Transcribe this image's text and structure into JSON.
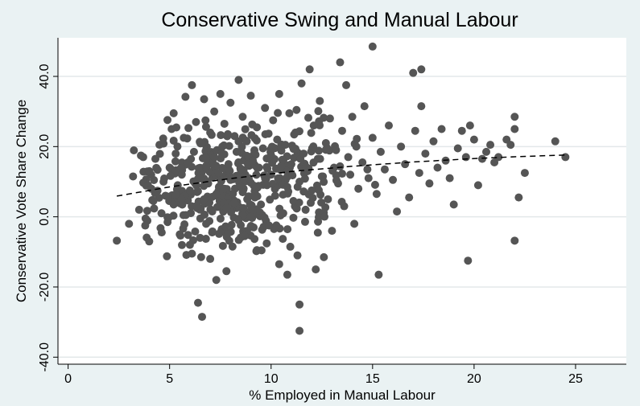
{
  "chart_data": {
    "type": "scatter",
    "title": "Conservative Swing and Manual Labour",
    "xlabel": "% Employed in Manual Labour",
    "ylabel": "Conservative Vote Share Change",
    "xlim": [
      -0.5,
      27.5
    ],
    "ylim": [
      -42,
      51
    ],
    "xticks": [
      0,
      5,
      10,
      15,
      20,
      25
    ],
    "xtick_labels": [
      "0",
      "5",
      "10",
      "15",
      "20",
      "25"
    ],
    "yticks": [
      -40,
      -20,
      0,
      20,
      40
    ],
    "ytick_labels": [
      "-40.0",
      "-20.0",
      "0.0",
      "20.0",
      "40.0"
    ],
    "grid": true,
    "marker_color": "#555555",
    "fit_line": {
      "style": "dashed",
      "points": [
        [
          2.4,
          5.9
        ],
        [
          5,
          8.5
        ],
        [
          8,
          10.9
        ],
        [
          11,
          12.9
        ],
        [
          14,
          14.4
        ],
        [
          17,
          15.6
        ],
        [
          20,
          16.6
        ],
        [
          22,
          17.1
        ],
        [
          24.5,
          17.6
        ]
      ]
    },
    "points": [
      [
        2.4,
        -6.8
      ],
      [
        3.0,
        -2.0
      ],
      [
        3.2,
        11.5
      ],
      [
        3.5,
        2.0
      ],
      [
        3.7,
        17.0
      ],
      [
        3.8,
        -2.5
      ],
      [
        4.0,
        13.0
      ],
      [
        4.1,
        8.0
      ],
      [
        4.2,
        4.5
      ],
      [
        4.3,
        16.5
      ],
      [
        4.5,
        20.5
      ],
      [
        4.6,
        1.0
      ],
      [
        4.7,
        10.0
      ],
      [
        4.8,
        6.0
      ],
      [
        4.9,
        -1.5
      ],
      [
        5.0,
        14.0
      ],
      [
        5.1,
        25.0
      ],
      [
        5.2,
        3.5
      ],
      [
        5.2,
        29.5
      ],
      [
        5.3,
        18.0
      ],
      [
        5.4,
        9.0
      ],
      [
        5.5,
        -5.0
      ],
      [
        5.6,
        12.0
      ],
      [
        5.7,
        22.5
      ],
      [
        5.8,
        0.5
      ],
      [
        5.9,
        15.5
      ],
      [
        6.0,
        -8.0
      ],
      [
        6.0,
        7.5
      ],
      [
        6.1,
        37.5
      ],
      [
        6.1,
        -10.5
      ],
      [
        6.2,
        18.5
      ],
      [
        6.3,
        3.0
      ],
      [
        6.3,
        27.0
      ],
      [
        6.4,
        -24.5
      ],
      [
        6.5,
        11.0
      ],
      [
        6.5,
        -6.0
      ],
      [
        6.6,
        21.0
      ],
      [
        6.7,
        5.0
      ],
      [
        6.7,
        33.5
      ],
      [
        6.8,
        -2.0
      ],
      [
        6.8,
        14.5
      ],
      [
        6.6,
        -28.5
      ],
      [
        6.9,
        9.5
      ],
      [
        7.0,
        24.0
      ],
      [
        7.0,
        -12.0
      ],
      [
        7.1,
        1.5
      ],
      [
        7.2,
        17.0
      ],
      [
        7.2,
        30.0
      ],
      [
        7.3,
        -18.0
      ],
      [
        7.3,
        6.5
      ],
      [
        7.4,
        12.5
      ],
      [
        7.5,
        35.0
      ],
      [
        7.5,
        -4.5
      ],
      [
        7.6,
        20.0
      ],
      [
        7.7,
        8.0
      ],
      [
        7.7,
        26.5
      ],
      [
        7.8,
        -15.5
      ],
      [
        7.8,
        2.5
      ],
      [
        7.9,
        15.0
      ],
      [
        8.0,
        10.5
      ],
      [
        8.0,
        32.5
      ],
      [
        8.1,
        -8.5
      ],
      [
        8.2,
        23.0
      ],
      [
        8.2,
        4.0
      ],
      [
        8.3,
        18.5
      ],
      [
        8.4,
        39.0
      ],
      [
        8.4,
        -1.0
      ],
      [
        8.5,
        13.5
      ],
      [
        8.6,
        7.0
      ],
      [
        8.6,
        28.5
      ],
      [
        8.7,
        -5.5
      ],
      [
        8.8,
        21.5
      ],
      [
        8.9,
        11.0
      ],
      [
        9.0,
        0.0
      ],
      [
        9.0,
        34.5
      ],
      [
        9.1,
        16.0
      ],
      [
        9.2,
        5.5
      ],
      [
        9.3,
        25.5
      ],
      [
        9.3,
        -9.5
      ],
      [
        9.4,
        14.0
      ],
      [
        9.5,
        3.5
      ],
      [
        9.6,
        19.5
      ],
      [
        9.7,
        31.0
      ],
      [
        9.8,
        9.0
      ],
      [
        9.9,
        -2.5
      ],
      [
        10.0,
        17.5
      ],
      [
        10.0,
        12.0
      ],
      [
        10.1,
        27.5
      ],
      [
        10.2,
        6.0
      ],
      [
        10.3,
        22.0
      ],
      [
        10.4,
        35.0
      ],
      [
        10.4,
        -13.5
      ],
      [
        10.5,
        14.5
      ],
      [
        10.6,
        1.0
      ],
      [
        10.7,
        20.5
      ],
      [
        10.8,
        8.5
      ],
      [
        10.8,
        -16.5
      ],
      [
        10.9,
        29.5
      ],
      [
        11.0,
        15.0
      ],
      [
        11.1,
        4.5
      ],
      [
        11.2,
        24.0
      ],
      [
        11.3,
        -11.0
      ],
      [
        11.4,
        10.0
      ],
      [
        11.4,
        -25.0
      ],
      [
        11.4,
        -32.5
      ],
      [
        11.5,
        38.0
      ],
      [
        11.6,
        18.0
      ],
      [
        11.7,
        2.0
      ],
      [
        11.8,
        13.0
      ],
      [
        11.9,
        42.0
      ],
      [
        12.0,
        7.5
      ],
      [
        12.1,
        26.0
      ],
      [
        12.2,
        -15.0
      ],
      [
        12.3,
        16.5
      ],
      [
        12.4,
        33.0
      ],
      [
        12.5,
        11.5
      ],
      [
        12.6,
        -11.5
      ],
      [
        12.7,
        21.0
      ],
      [
        12.8,
        5.0
      ],
      [
        12.9,
        28.0
      ],
      [
        13.0,
        -4.0
      ],
      [
        13.1,
        14.0
      ],
      [
        13.2,
        19.0
      ],
      [
        13.3,
        9.5
      ],
      [
        13.4,
        44.0
      ],
      [
        13.5,
        24.5
      ],
      [
        13.6,
        3.0
      ],
      [
        13.7,
        37.5
      ],
      [
        13.8,
        17.0
      ],
      [
        13.9,
        12.0
      ],
      [
        14.0,
        28.5
      ],
      [
        14.1,
        -2.0
      ],
      [
        14.2,
        20.0
      ],
      [
        14.3,
        8.0
      ],
      [
        14.5,
        15.5
      ],
      [
        14.6,
        31.5
      ],
      [
        14.8,
        11.0
      ],
      [
        15.0,
        48.5
      ],
      [
        15.0,
        22.5
      ],
      [
        15.2,
        6.5
      ],
      [
        15.3,
        -16.5
      ],
      [
        15.4,
        18.5
      ],
      [
        15.6,
        13.5
      ],
      [
        15.8,
        26.0
      ],
      [
        16.0,
        10.5
      ],
      [
        16.2,
        1.5
      ],
      [
        16.4,
        20.0
      ],
      [
        16.6,
        15.0
      ],
      [
        16.8,
        5.5
      ],
      [
        17.0,
        41.0
      ],
      [
        17.1,
        24.5
      ],
      [
        17.3,
        12.5
      ],
      [
        17.4,
        42.0
      ],
      [
        17.4,
        31.5
      ],
      [
        17.6,
        18.0
      ],
      [
        17.8,
        9.5
      ],
      [
        18.0,
        21.5
      ],
      [
        18.2,
        14.0
      ],
      [
        18.4,
        25.0
      ],
      [
        18.6,
        16.0
      ],
      [
        18.8,
        11.0
      ],
      [
        19.0,
        3.5
      ],
      [
        19.2,
        19.5
      ],
      [
        19.4,
        24.5
      ],
      [
        19.6,
        17.0
      ],
      [
        19.7,
        -12.5
      ],
      [
        19.8,
        26.0
      ],
      [
        20.0,
        22.0
      ],
      [
        20.2,
        9.0
      ],
      [
        20.4,
        16.5
      ],
      [
        20.6,
        18.5
      ],
      [
        20.8,
        20.5
      ],
      [
        21.0,
        15.5
      ],
      [
        21.2,
        17.0
      ],
      [
        21.6,
        22.0
      ],
      [
        21.8,
        20.5
      ],
      [
        22.0,
        28.5
      ],
      [
        22.0,
        25.0
      ],
      [
        22.0,
        -6.8
      ],
      [
        22.2,
        5.5
      ],
      [
        22.5,
        12.5
      ],
      [
        24.0,
        21.5
      ],
      [
        24.5,
        17.0
      ]
    ]
  }
}
